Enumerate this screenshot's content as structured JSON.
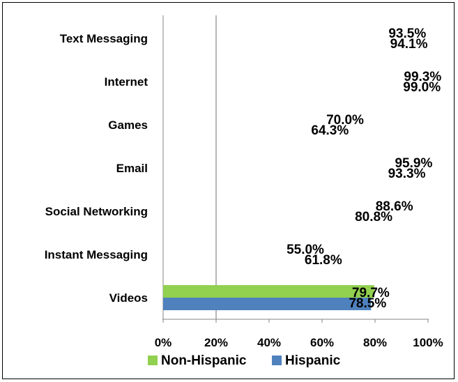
{
  "chart_data": {
    "type": "bar",
    "orientation": "horizontal",
    "categories": [
      "Text Messaging",
      "Internet",
      "Games",
      "Email",
      "Social Networking",
      "Instant Messaging",
      "Videos"
    ],
    "series": [
      {
        "name": "Non-Hispanic",
        "color": "#92d050",
        "values": [
          93.5,
          99.3,
          70.0,
          95.9,
          88.6,
          55.0,
          79.7
        ],
        "labels": [
          "93.5%",
          "99.3%",
          "70.0%",
          "95.9%",
          "88.6%",
          "55.0%",
          "79.7%"
        ],
        "bar_visible": [
          false,
          false,
          false,
          false,
          false,
          false,
          true
        ]
      },
      {
        "name": "Hispanic",
        "color": "#4f81bd",
        "values": [
          94.1,
          99.0,
          64.3,
          93.3,
          80.8,
          61.8,
          78.5
        ],
        "labels": [
          "94.1%",
          "99.0%",
          "64.3%",
          "93.3%",
          "80.8%",
          "61.8%",
          "78.5%"
        ],
        "bar_visible": [
          false,
          false,
          false,
          false,
          false,
          false,
          true
        ]
      }
    ],
    "xlim": [
      0,
      100
    ],
    "x_ticks": [
      0,
      20,
      40,
      60,
      80,
      100
    ],
    "x_tick_labels": [
      "0%",
      "20%",
      "40%",
      "60%",
      "80%",
      "100%"
    ],
    "reference_line": 20,
    "grid": false,
    "legend_position": "bottom"
  }
}
